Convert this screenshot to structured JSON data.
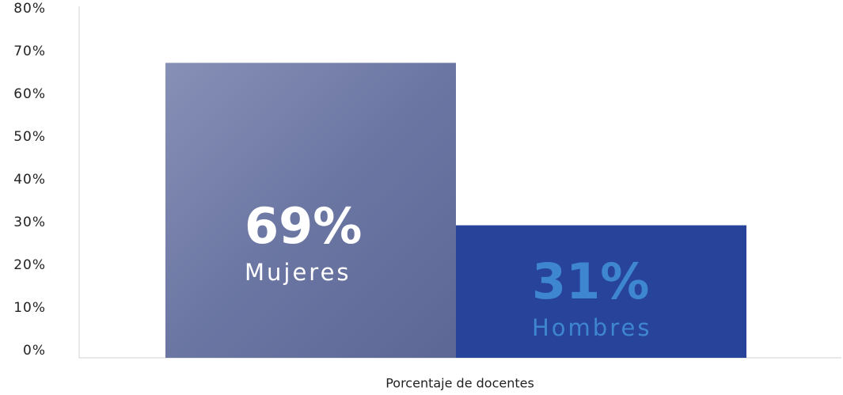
{
  "chart_data": {
    "type": "bar",
    "x_label": "Porcentaje de docentes",
    "categories": [
      "Mujeres",
      "Hombres"
    ],
    "values": [
      69,
      31
    ],
    "value_labels": [
      "69%",
      "31%"
    ],
    "colors": [
      "#6f7aa6",
      "#27439a"
    ],
    "label_colors": [
      "#ffffff",
      "#3f86d1"
    ],
    "ylim": [
      0,
      80
    ],
    "yticks": [
      {
        "value": 0,
        "label": "0%"
      },
      {
        "value": 10,
        "label": "10%"
      },
      {
        "value": 20,
        "label": "20%"
      },
      {
        "value": 30,
        "label": "30%"
      },
      {
        "value": 40,
        "label": "40%"
      },
      {
        "value": 50,
        "label": "50%"
      },
      {
        "value": 60,
        "label": "60%"
      },
      {
        "value": 70,
        "label": "70%"
      },
      {
        "value": 80,
        "label": "80%"
      }
    ],
    "grid": false
  }
}
